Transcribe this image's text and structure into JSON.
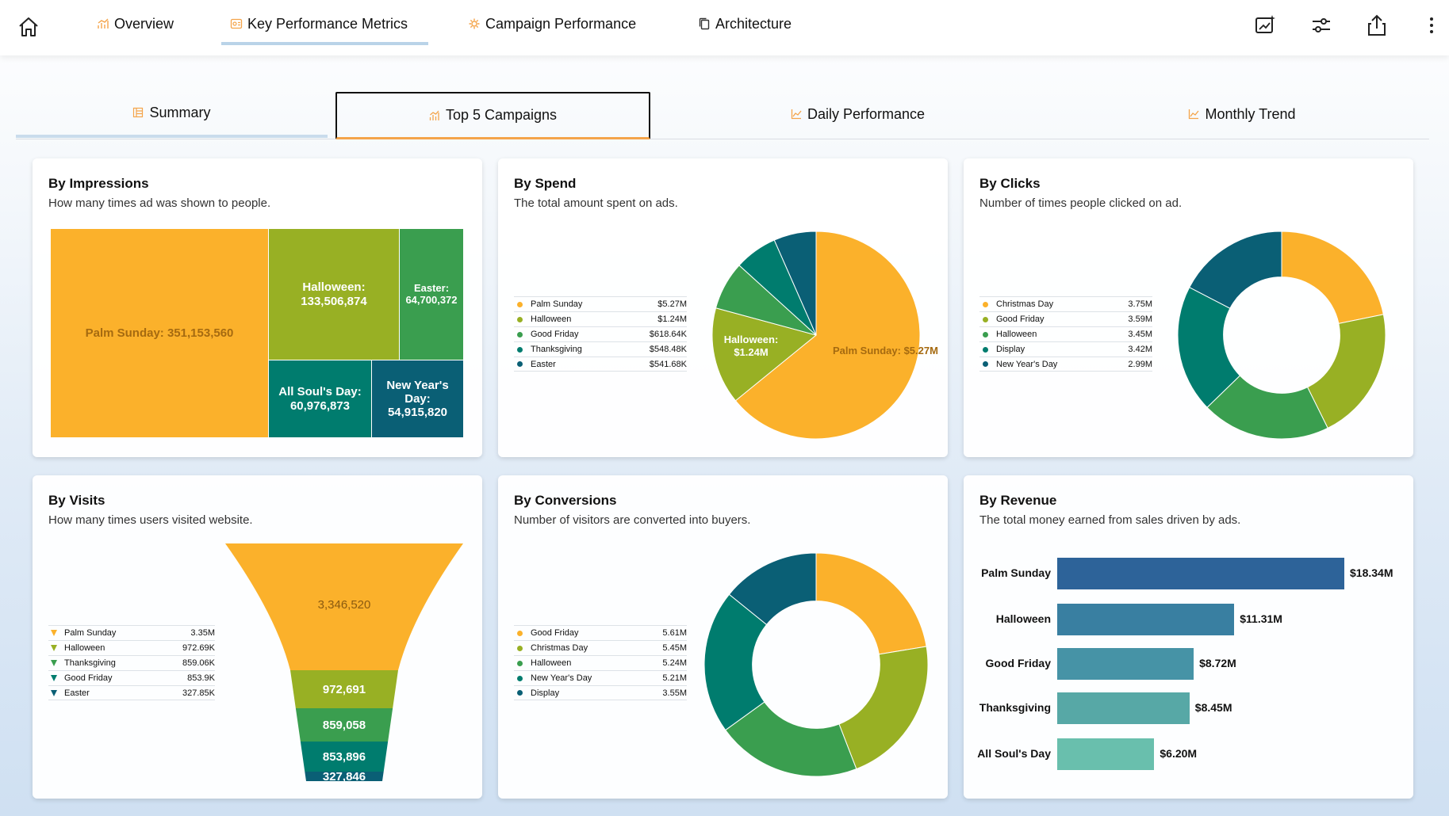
{
  "nav": {
    "tabs": [
      {
        "label": "Overview"
      },
      {
        "label": "Key Performance Metrics"
      },
      {
        "label": "Campaign Performance"
      },
      {
        "label": "Architecture"
      }
    ]
  },
  "subtabs": [
    {
      "label": "Summary"
    },
    {
      "label": "Top 5 Campaigns"
    },
    {
      "label": "Daily Performance"
    },
    {
      "label": "Monthly Trend"
    }
  ],
  "colors": {
    "orange": "#fbb12b",
    "lime": "#98b024",
    "green": "#3a9e4f",
    "teal": "#007c6e",
    "darkteal": "#0a5f75",
    "accent": "#f4a44a"
  },
  "cards": {
    "impressions": {
      "title": "By Impressions",
      "subtitle": "How many times ad was shown to people.",
      "items": [
        {
          "name": "Palm Sunday",
          "label": "Palm Sunday: 351,153,560"
        },
        {
          "name": "Halloween",
          "label": "Halloween:",
          "value": "133,506,874"
        },
        {
          "name": "Easter",
          "label": "Easter:",
          "value": "64,700,372"
        },
        {
          "name": "All Soul's Day",
          "label": "All Soul's Day:",
          "value": "60,976,873"
        },
        {
          "name": "New Year's Day",
          "label": "New Year's Day:",
          "value": "54,915,820"
        }
      ]
    },
    "spend": {
      "title": "By Spend",
      "subtitle": "The total amount spent on ads.",
      "legend": [
        {
          "label": "Palm Sunday",
          "value": "$5.27M"
        },
        {
          "label": "Halloween",
          "value": "$1.24M"
        },
        {
          "label": "Good Friday",
          "value": "$618.64K"
        },
        {
          "label": "Thanksgiving",
          "value": "$548.48K"
        },
        {
          "label": "Easter",
          "value": "$541.68K"
        }
      ],
      "slice_labels": {
        "palm": "Palm Sunday: $5.27M",
        "halloween_name": "Halloween:",
        "halloween_value": "$1.24M"
      }
    },
    "clicks": {
      "title": "By Clicks",
      "subtitle": "Number of times people clicked on ad.",
      "legend": [
        {
          "label": "Christmas Day",
          "value": "3.75M"
        },
        {
          "label": "Good Friday",
          "value": "3.59M"
        },
        {
          "label": "Halloween",
          "value": "3.45M"
        },
        {
          "label": "Display",
          "value": "3.42M"
        },
        {
          "label": "New Year's Day",
          "value": "2.99M"
        }
      ]
    },
    "visits": {
      "title": "By Visits",
      "subtitle": "How many times users visited website.",
      "legend": [
        {
          "label": "Palm Sunday",
          "value": "3.35M"
        },
        {
          "label": "Halloween",
          "value": "972.69K"
        },
        {
          "label": "Thanksgiving",
          "value": "859.06K"
        },
        {
          "label": "Good Friday",
          "value": "853.9K"
        },
        {
          "label": "Easter",
          "value": "327.85K"
        }
      ],
      "funnel_labels": [
        "3,346,520",
        "972,691",
        "859,058",
        "853,896",
        "327,846"
      ]
    },
    "conversions": {
      "title": "By Conversions",
      "subtitle": "Number of visitors are converted into buyers.",
      "legend": [
        {
          "label": "Good Friday",
          "value": "5.61M"
        },
        {
          "label": "Christmas Day",
          "value": "5.45M"
        },
        {
          "label": "Halloween",
          "value": "5.24M"
        },
        {
          "label": "New Year's Day",
          "value": "5.21M"
        },
        {
          "label": "Display",
          "value": "3.55M"
        }
      ]
    },
    "revenue": {
      "title": "By Revenue",
      "subtitle": "The total money earned from sales driven by ads.",
      "bars": [
        {
          "label": "Palm Sunday",
          "value_label": "$18.34M"
        },
        {
          "label": "Halloween",
          "value_label": "$11.31M"
        },
        {
          "label": "Good Friday",
          "value_label": "$8.72M"
        },
        {
          "label": "Thanksgiving",
          "value_label": "$8.45M"
        },
        {
          "label": "All Soul's Day",
          "value_label": "$6.20M"
        }
      ]
    }
  },
  "chart_data": [
    {
      "type": "treemap",
      "categories": [
        "Palm Sunday",
        "Halloween",
        "Easter",
        "All Soul's Day",
        "New Year's Day"
      ],
      "values": [
        351153560,
        133506874,
        64700372,
        60976873,
        54915820
      ]
    },
    {
      "type": "pie",
      "categories": [
        "Palm Sunday",
        "Halloween",
        "Good Friday",
        "Thanksgiving",
        "Easter"
      ],
      "values": [
        5.27,
        1.24,
        0.61864,
        0.54848,
        0.54168
      ]
    },
    {
      "type": "pie",
      "categories": [
        "Christmas Day",
        "Good Friday",
        "Halloween",
        "Display",
        "New Year's Day"
      ],
      "values": [
        3.75,
        3.59,
        3.45,
        3.42,
        2.99
      ]
    },
    {
      "type": "funnel",
      "categories": [
        "Palm Sunday",
        "Halloween",
        "Thanksgiving",
        "Good Friday",
        "Easter"
      ],
      "values": [
        3346520,
        972691,
        859058,
        853896,
        327846
      ]
    },
    {
      "type": "pie",
      "categories": [
        "Good Friday",
        "Christmas Day",
        "Halloween",
        "New Year's Day",
        "Display"
      ],
      "values": [
        5.61,
        5.45,
        5.24,
        5.21,
        3.55
      ]
    },
    {
      "type": "bar",
      "categories": [
        "Palm Sunday",
        "Halloween",
        "Good Friday",
        "Thanksgiving",
        "All Soul's Day"
      ],
      "values": [
        18.34,
        11.31,
        8.72,
        8.45,
        6.2
      ],
      "colors": [
        "#2d6399",
        "#397fa1",
        "#4693a6",
        "#57a8a6",
        "#69bfad"
      ]
    }
  ]
}
